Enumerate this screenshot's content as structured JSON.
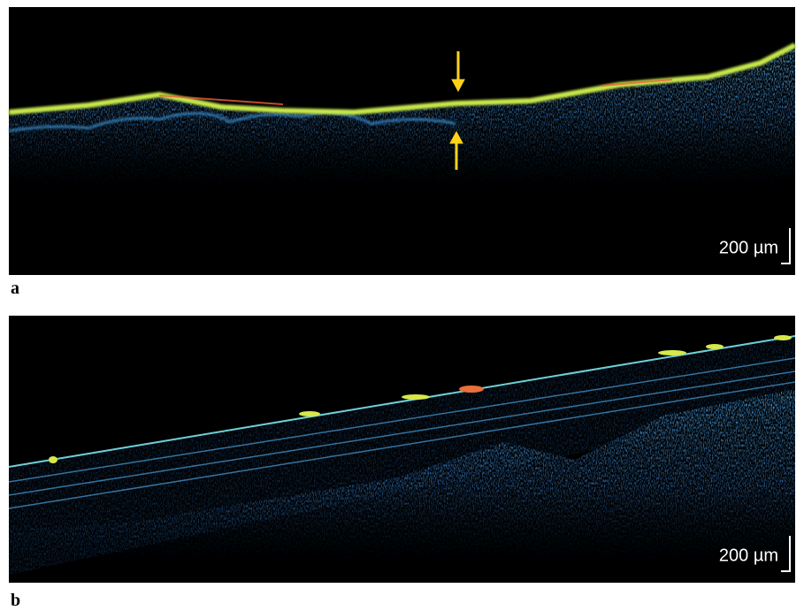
{
  "panels": [
    {
      "label": "a",
      "scale_bar": "200 µm"
    },
    {
      "label": "b",
      "scale_bar": "200 µm"
    }
  ]
}
